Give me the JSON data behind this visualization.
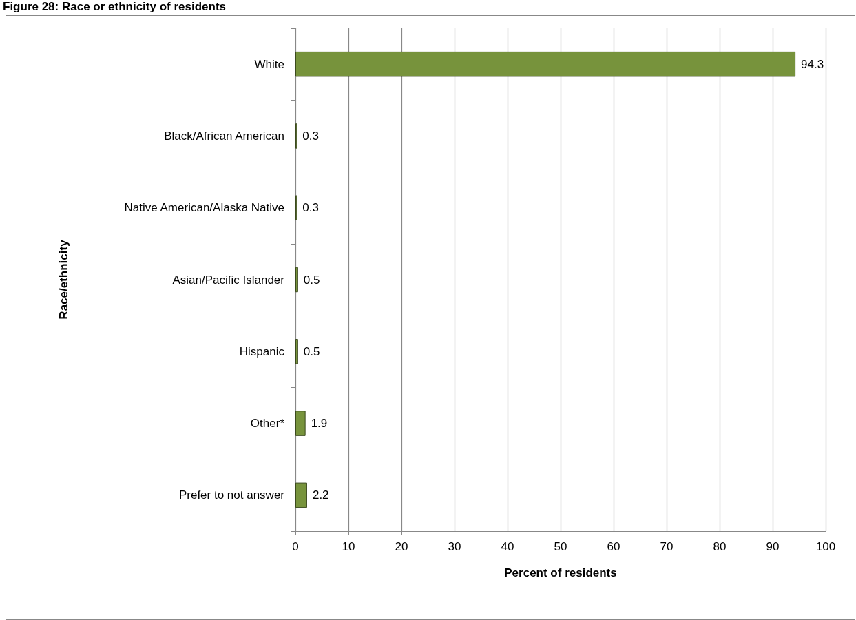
{
  "chart_data": {
    "type": "bar",
    "orientation": "horizontal",
    "title": "Figure 28: Race or ethnicity of residents",
    "categories": [
      "White",
      "Black/African American",
      "Native American/Alaska Native",
      "Asian/Pacific Islander",
      "Hispanic",
      "Other*",
      "Prefer to not answer"
    ],
    "values": [
      94.3,
      0.3,
      0.3,
      0.5,
      0.5,
      1.9,
      2.2
    ],
    "color": "#77933c",
    "xlim": [
      0,
      100
    ],
    "xticks": [
      0,
      10,
      20,
      30,
      40,
      50,
      60,
      70,
      80,
      90,
      100
    ],
    "xlabel": "Percent of residents",
    "ylabel": "Race/ethnicity",
    "grid": "x",
    "data_labels": true
  }
}
